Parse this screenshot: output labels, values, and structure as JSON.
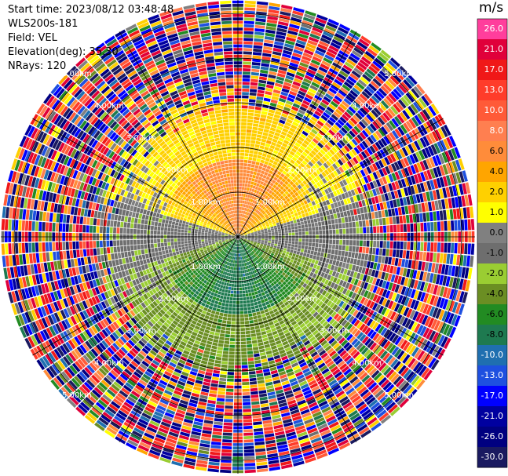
{
  "header": {
    "start_time": "Start time: 2023/08/12 03:48:48",
    "instrument": "WLS200s-181",
    "field": "Field: VEL",
    "elevation": "Elevation(deg): 35.30",
    "nrays": "NRays: 120"
  },
  "colorbar": {
    "unit": "m/s",
    "ticks": [
      "26.0",
      "21.0",
      "17.0",
      "13.0",
      "10.0",
      "8.0",
      "6.0",
      "4.0",
      "2.0",
      "1.0",
      "0.0",
      "-1.0",
      "-2.0",
      "-4.0",
      "-6.0",
      "-8.0",
      "-10.0",
      "-13.0",
      "-17.0",
      "-21.0",
      "-26.0",
      "-30.0"
    ],
    "colors": [
      "#ff3e9c",
      "#e0003a",
      "#f01818",
      "#ff3c2a",
      "#ff5a38",
      "#ff7f50",
      "#ff8c3a",
      "#ffa500",
      "#ffd000",
      "#ffff00",
      "#808080",
      "#6e6e6e",
      "#9acd32",
      "#6b8e23",
      "#228b22",
      "#1e7a50",
      "#1f6fb0",
      "#1e50e0",
      "#0000ff",
      "#0000a0",
      "#000080",
      "#1a1a60"
    ]
  },
  "chart_data": {
    "type": "polar-ppi",
    "title": "",
    "range_unit": "km",
    "range_rings": [
      1.0,
      2.0,
      3.0,
      4.0,
      5.0
    ],
    "range_ring_labels": [
      "1.00km",
      "2.00km",
      "3.00km",
      "4.00km",
      "5.00km"
    ],
    "spokes_deg": [
      0,
      30,
      60,
      90,
      120,
      150,
      180,
      210,
      240,
      270,
      300,
      330
    ],
    "max_range_km": 5.3,
    "n_rays": 120,
    "velocity_structure": [
      {
        "region": "north sector, range 0-1.8 km",
        "velocity_ms": "6 to 8"
      },
      {
        "region": "north sector, range 1.8-3.0 km",
        "velocity_ms": "1 to 2"
      },
      {
        "region": "south sector, range 0-1.5 km",
        "velocity_ms": "-6 to -8"
      },
      {
        "region": "south sector, range 1.5-3.2 km",
        "velocity_ms": "-2 to -4"
      },
      {
        "region": "east/west near-horizontal band",
        "velocity_ms": "0 to -1"
      },
      {
        "region": "range > 3 km",
        "velocity_ms": "noise, -30 to 26"
      }
    ]
  }
}
